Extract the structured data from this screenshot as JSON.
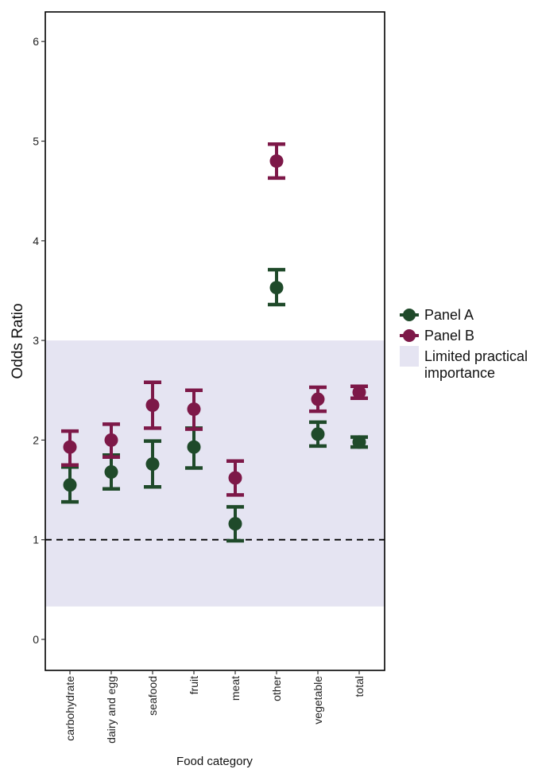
{
  "chart_data": {
    "type": "scatter",
    "variant": "error-bar point plot",
    "xlabel": "Food category",
    "ylabel": "Odds Ratio",
    "categories": [
      "carbohydrate",
      "dairy and egg",
      "seafood",
      "fruit",
      "meat",
      "other",
      "vegetable",
      "total"
    ],
    "ylim": [
      -0.3,
      6.3
    ],
    "yticks": [
      0,
      1,
      2,
      3,
      4,
      5,
      6
    ],
    "grid": false,
    "legend_position": "right",
    "reference_line": {
      "y": 1,
      "style": "dashed",
      "color": "#000000"
    },
    "shaded_band": {
      "label": "Limited practical importance",
      "y_from": 0.33,
      "y_to": 3.0,
      "color": "#e5e4f2"
    },
    "series": [
      {
        "name": "Panel A",
        "color": "#1f4a2a",
        "values": [
          1.55,
          1.68,
          1.76,
          1.93,
          1.16,
          3.53,
          2.06,
          1.98
        ],
        "lower": [
          1.38,
          1.51,
          1.53,
          1.72,
          0.99,
          3.36,
          1.94,
          1.93
        ],
        "upper": [
          1.73,
          1.85,
          1.99,
          2.12,
          1.33,
          3.71,
          2.18,
          2.03
        ]
      },
      {
        "name": "Panel B",
        "color": "#7d1848",
        "values": [
          1.93,
          2.0,
          2.35,
          2.31,
          1.62,
          4.8,
          2.41,
          2.48
        ],
        "lower": [
          1.75,
          1.83,
          2.12,
          2.11,
          1.45,
          4.63,
          2.29,
          2.42
        ],
        "upper": [
          2.09,
          2.16,
          2.58,
          2.5,
          1.79,
          4.97,
          2.53,
          2.54
        ]
      }
    ],
    "legend": [
      {
        "label": "Panel A",
        "color": "#1f4a2a",
        "kind": "point"
      },
      {
        "label": "Panel B",
        "color": "#7d1848",
        "kind": "point"
      },
      {
        "label": "Limited practical importance",
        "label_lines": [
          "Limited practical",
          "importance"
        ],
        "color": "#e5e4f2",
        "kind": "band"
      }
    ]
  }
}
